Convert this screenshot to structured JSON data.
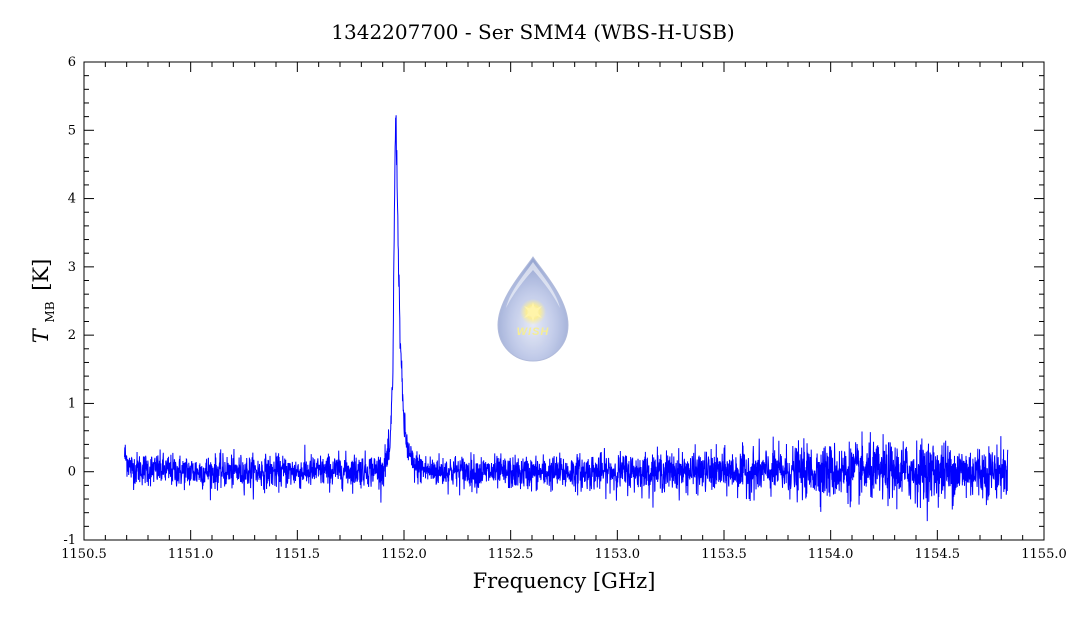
{
  "chart_data": {
    "type": "line",
    "title": "1342207700 - Ser SMM4 (WBS-H-USB)",
    "xlabel": "Frequency [GHz]",
    "ylabel_main": "T",
    "ylabel_sub": "MB",
    "ylabel_unit": "[K]",
    "xlim": [
      1150.5,
      1155.0
    ],
    "ylim": [
      -1,
      6
    ],
    "x_ticks": [
      "1150.5",
      "1151.0",
      "1151.5",
      "1152.0",
      "1152.5",
      "1153.0",
      "1153.5",
      "1154.0",
      "1154.5",
      "1155.0"
    ],
    "y_ticks": [
      "-1",
      "0",
      "1",
      "2",
      "3",
      "4",
      "5",
      "6"
    ],
    "grid": false,
    "series": [
      {
        "color": "#0000ff",
        "x_range": [
          1150.69,
          1154.83
        ],
        "profile": [
          {
            "x": 1150.69,
            "y": 0.25
          },
          {
            "x": 1150.72,
            "y": 0.05
          },
          {
            "x": 1151.0,
            "y": 0.0
          },
          {
            "x": 1151.5,
            "y": 0.0
          },
          {
            "x": 1151.9,
            "y": 0.03
          },
          {
            "x": 1151.935,
            "y": 0.3
          },
          {
            "x": 1151.948,
            "y": 1.5
          },
          {
            "x": 1151.955,
            "y": 3.8
          },
          {
            "x": 1151.961,
            "y": 5.3
          },
          {
            "x": 1151.966,
            "y": 4.6
          },
          {
            "x": 1151.972,
            "y": 3.5
          },
          {
            "x": 1151.98,
            "y": 2.2
          },
          {
            "x": 1151.99,
            "y": 1.3
          },
          {
            "x": 1152.0,
            "y": 0.7
          },
          {
            "x": 1152.015,
            "y": 0.35
          },
          {
            "x": 1152.04,
            "y": 0.1
          },
          {
            "x": 1152.1,
            "y": 0.02
          },
          {
            "x": 1152.5,
            "y": -0.02
          },
          {
            "x": 1153.0,
            "y": 0.0
          },
          {
            "x": 1153.5,
            "y": 0.0
          },
          {
            "x": 1154.0,
            "y": 0.0
          },
          {
            "x": 1154.5,
            "y": 0.0
          },
          {
            "x": 1154.83,
            "y": 0.0
          }
        ],
        "noise_rms": [
          {
            "x": 1150.69,
            "rms": 0.12
          },
          {
            "x": 1152.5,
            "rms": 0.12
          },
          {
            "x": 1153.5,
            "rms": 0.15
          },
          {
            "x": 1154.0,
            "rms": 0.2
          },
          {
            "x": 1154.5,
            "rms": 0.22
          },
          {
            "x": 1154.83,
            "rms": 0.18
          }
        ]
      }
    ]
  },
  "logo": {
    "text": "WISH",
    "icon": "wish-droplet-logo"
  }
}
